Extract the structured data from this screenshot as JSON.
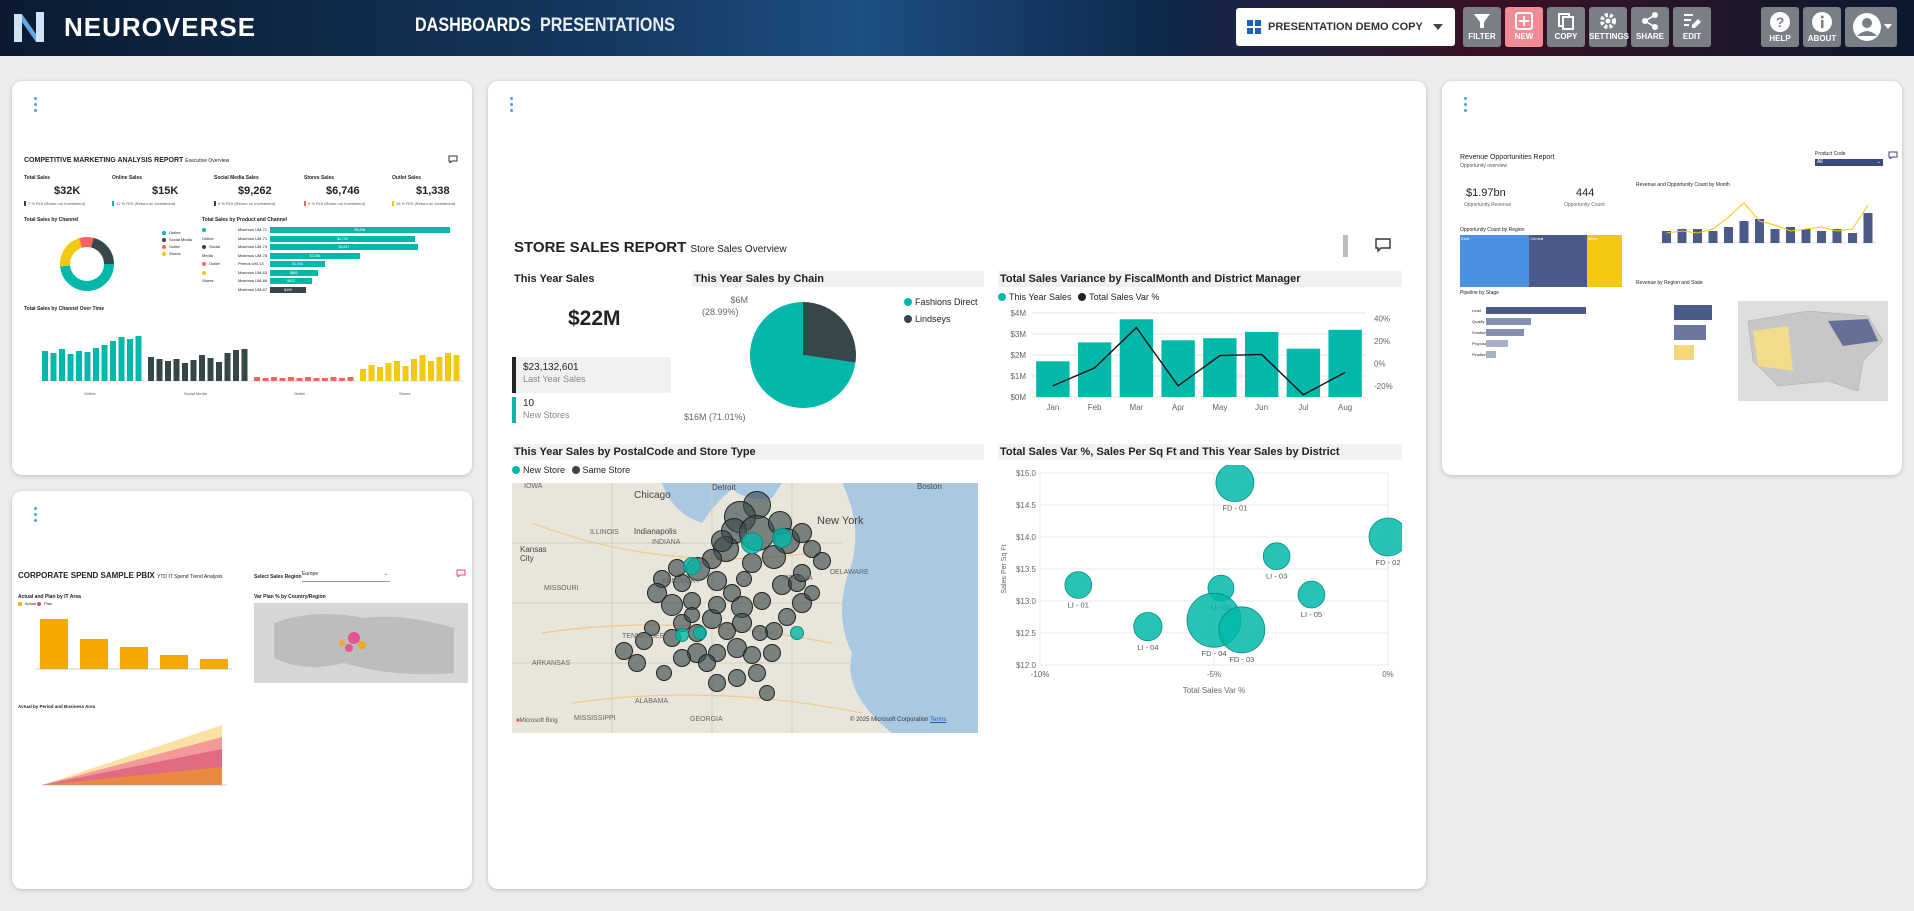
{
  "app": {
    "name": "NEUROVERSE"
  },
  "nav": {
    "dashboards": "DASHBOARDS",
    "presentations": "PRESENTATIONS"
  },
  "presentation_select": {
    "value": "PRESENTATION DEMO COPY"
  },
  "toolbar": [
    {
      "label": "FILTER",
      "icon": "filter-icon"
    },
    {
      "label": "NEW",
      "icon": "plus-icon",
      "accent": "#f08a94"
    },
    {
      "label": "COPY",
      "icon": "copy-icon"
    },
    {
      "label": "SETTINGS",
      "icon": "gear-icon"
    },
    {
      "label": "SHARE",
      "icon": "share-icon"
    },
    {
      "label": "EDIT",
      "icon": "edit-icon"
    }
  ],
  "help": {
    "help": "HELP",
    "about": "ABOUT"
  },
  "colors": {
    "teal": "#01b8aa",
    "dark": "#374649",
    "navy": "#4b5a89",
    "gold": "#f2c811",
    "orange": "#f6a800",
    "pink": "#e8428a"
  },
  "store_report": {
    "title": "STORE SALES REPORT",
    "subtitle": "Store Sales Overview",
    "this_year_sales": {
      "header": "This Year Sales",
      "value": "$22M",
      "last_year_value": "$23,132,601",
      "last_year_label": "Last Year Sales",
      "new_stores_value": "10",
      "new_stores_label": "New Stores"
    },
    "by_chain": {
      "header": "This Year Sales by Chain",
      "legend": [
        "Fashions Direct",
        "Lindseys"
      ],
      "label_small_1": "$6M",
      "label_small_2": "(28.99%)",
      "label_big": "$16M (71.01%)"
    },
    "variance": {
      "header": "Total Sales Variance by FiscalMonth and District Manager",
      "legend": [
        "This Year Sales",
        "Total Sales Var %"
      ],
      "y_left": [
        "$4M",
        "$3M",
        "$2M",
        "$1M",
        "$0M"
      ],
      "y_right": [
        "40%",
        "20%",
        "0%",
        "-20%"
      ],
      "months": [
        "Jan",
        "Feb",
        "Mar",
        "Apr",
        "May",
        "Jun",
        "Jul",
        "Aug"
      ]
    },
    "map": {
      "header": "This Year Sales by PostalCode and Store Type",
      "legend": [
        "New Store",
        "Same Store"
      ],
      "places": [
        "Chicago",
        "Detroit",
        "Boston",
        "IOWA",
        "ILLINOIS",
        "INDIANA",
        "OHIO",
        "Indianapolis",
        "New York",
        "Kansas City",
        "MISSOURI",
        "KENTUCKY",
        "VIRGINIA",
        "DELAWARE",
        "TENNESSEE",
        "ARKANSAS",
        "ALABAMA",
        "MISSISSIPPI",
        "GEORGIA"
      ],
      "credit": "© 2025 Microsoft Corporation",
      "terms": "Terms",
      "bing": "Microsoft Bing"
    },
    "scatter": {
      "header": "Total Sales Var %, Sales Per Sq Ft and This Year Sales by District",
      "y_ticks": [
        "$15.0",
        "$14.5",
        "$14.0",
        "$13.5",
        "$13.0",
        "$12.5",
        "$12.0"
      ],
      "x_ticks": [
        "-10%",
        "-5%",
        "0%"
      ],
      "x_label": "Total Sales Var %",
      "y_label": "Sales Per Sq Ft",
      "points": [
        "FD - 01",
        "FD - 02",
        "LI - 03",
        "LI - 02",
        "FD - 04",
        "LI - 01",
        "LI - 05",
        "LI - 04",
        "FD - 03"
      ]
    }
  },
  "chart_data": [
    {
      "type": "pie",
      "title": "This Year Sales by Chain",
      "labels": [
        "Fashions Direct",
        "Lindseys"
      ],
      "values": [
        16,
        6
      ],
      "units": "$M"
    },
    {
      "type": "bar",
      "title": "Total Sales Variance by FiscalMonth and District Manager",
      "categories": [
        "Jan",
        "Feb",
        "Mar",
        "Apr",
        "May",
        "Jun",
        "Jul",
        "Aug"
      ],
      "series": [
        {
          "name": "This Year Sales",
          "values": [
            1.7,
            2.6,
            3.7,
            2.7,
            2.8,
            3.1,
            2.3,
            3.2
          ]
        },
        {
          "name": "Total Sales Var %",
          "values": [
            -20,
            -4,
            32,
            -20,
            7,
            8,
            -28,
            -8
          ]
        }
      ],
      "ylim": [
        0,
        4
      ],
      "y2lim": [
        -30,
        45
      ]
    },
    {
      "type": "scatter",
      "title": "Total Sales Var %, Sales Per Sq Ft and This Year Sales by District",
      "xlabel": "Total Sales Var %",
      "ylabel": "Sales Per Sq Ft",
      "xlim": [
        -10,
        0
      ],
      "ylim": [
        12,
        15
      ],
      "points": [
        {
          "label": "FD - 01",
          "x": -4.4,
          "y": 14.85,
          "size": 3
        },
        {
          "label": "FD - 02",
          "x": 0,
          "y": 14.0,
          "size": 3
        },
        {
          "label": "LI - 03",
          "x": -3.2,
          "y": 13.7,
          "size": 1.6
        },
        {
          "label": "LI - 02",
          "x": -4.8,
          "y": 13.2,
          "size": 1.5
        },
        {
          "label": "FD - 04",
          "x": -5.0,
          "y": 12.7,
          "size": 5
        },
        {
          "label": "LI - 01",
          "x": -8.9,
          "y": 13.25,
          "size": 1.6
        },
        {
          "label": "LI - 05",
          "x": -2.2,
          "y": 13.1,
          "size": 1.6
        },
        {
          "label": "LI - 04",
          "x": -6.9,
          "y": 12.6,
          "size": 1.8
        },
        {
          "label": "FD - 03",
          "x": -4.2,
          "y": 12.55,
          "size": 4
        }
      ]
    }
  ],
  "competitive": {
    "title": "COMPETITIVE MARKETING ANALYSIS REPORT",
    "subtitle": "Executive Overview",
    "kpis": [
      {
        "label": "Total Sales",
        "value": "$32K"
      },
      {
        "label": "Online Sales",
        "value": "$15K"
      },
      {
        "label": "Social Media Sales",
        "value": "$9,262"
      },
      {
        "label": "Stores Sales",
        "value": "$6,746"
      },
      {
        "label": "Outlet Sales",
        "value": "$1,338"
      }
    ],
    "roi_notes": [
      "7 % ROI (Return on Investment)",
      "12 % ROI (Return on Investment)",
      "9 % ROI (Return on Investment)",
      "5 % ROI (Return on Investment)",
      "16 % ROI (Return on Investment)"
    ],
    "channel_title": "Total Sales by Channel",
    "product_title": "Total Sales by Product and Channel",
    "time_title": "Total Sales by Channel Over Time",
    "channels": [
      "Online",
      "Social Media",
      "Outlet",
      "Stores"
    ],
    "products": [
      "Maximus UM-72",
      "Maximus UM-71",
      "Maximus UM-74",
      "Maximus UM-75",
      "Primus UM-13",
      "Maximus UM-63",
      "Maximus UM-66",
      "Maximus UM-67"
    ],
    "product_values": [
      "$5,696",
      "$3,739",
      "$3,817",
      "$2,066",
      "$1,406",
      "$862",
      "$613",
      "$490"
    ],
    "time_groups": [
      "Online",
      "Social Media",
      "Outlet",
      "Stores"
    ]
  },
  "revenue": {
    "title": "Revenue Opportunities Report",
    "subtitle": "Opportunity overview",
    "product_code_label": "Product Code",
    "product_code_value": "All",
    "kpi1_value": "$1.97bn",
    "kpi1_label": "Opportunity Revenue",
    "kpi2_value": "444",
    "kpi2_label": "Opportunity Count",
    "region_title": "Opportunity Count by Region",
    "month_title": "Revenue and Opportunity Count by Month",
    "pipeline_title": "Pipeline by Stage",
    "state_title": "Revenue by Region and State",
    "stages": [
      "Lead",
      "Qualify",
      "Solution",
      "Proposal",
      "Finalize"
    ],
    "regions": [
      "East",
      "Central",
      "West"
    ]
  },
  "corporate": {
    "title": "CORPORATE SPEND SAMPLE PBIX",
    "subtitle": "YTD IT Spend Trend Analysis",
    "region_label": "Select Sales Region",
    "region_value": "Europe",
    "actual_plan_title": "Actual and Plan by IT Area",
    "var_plan_title": "Var Plan % by Country/Region",
    "period_title": "Actual by Period and Business Area",
    "legend_actual": "Actual",
    "legend_plan": "Plan"
  }
}
